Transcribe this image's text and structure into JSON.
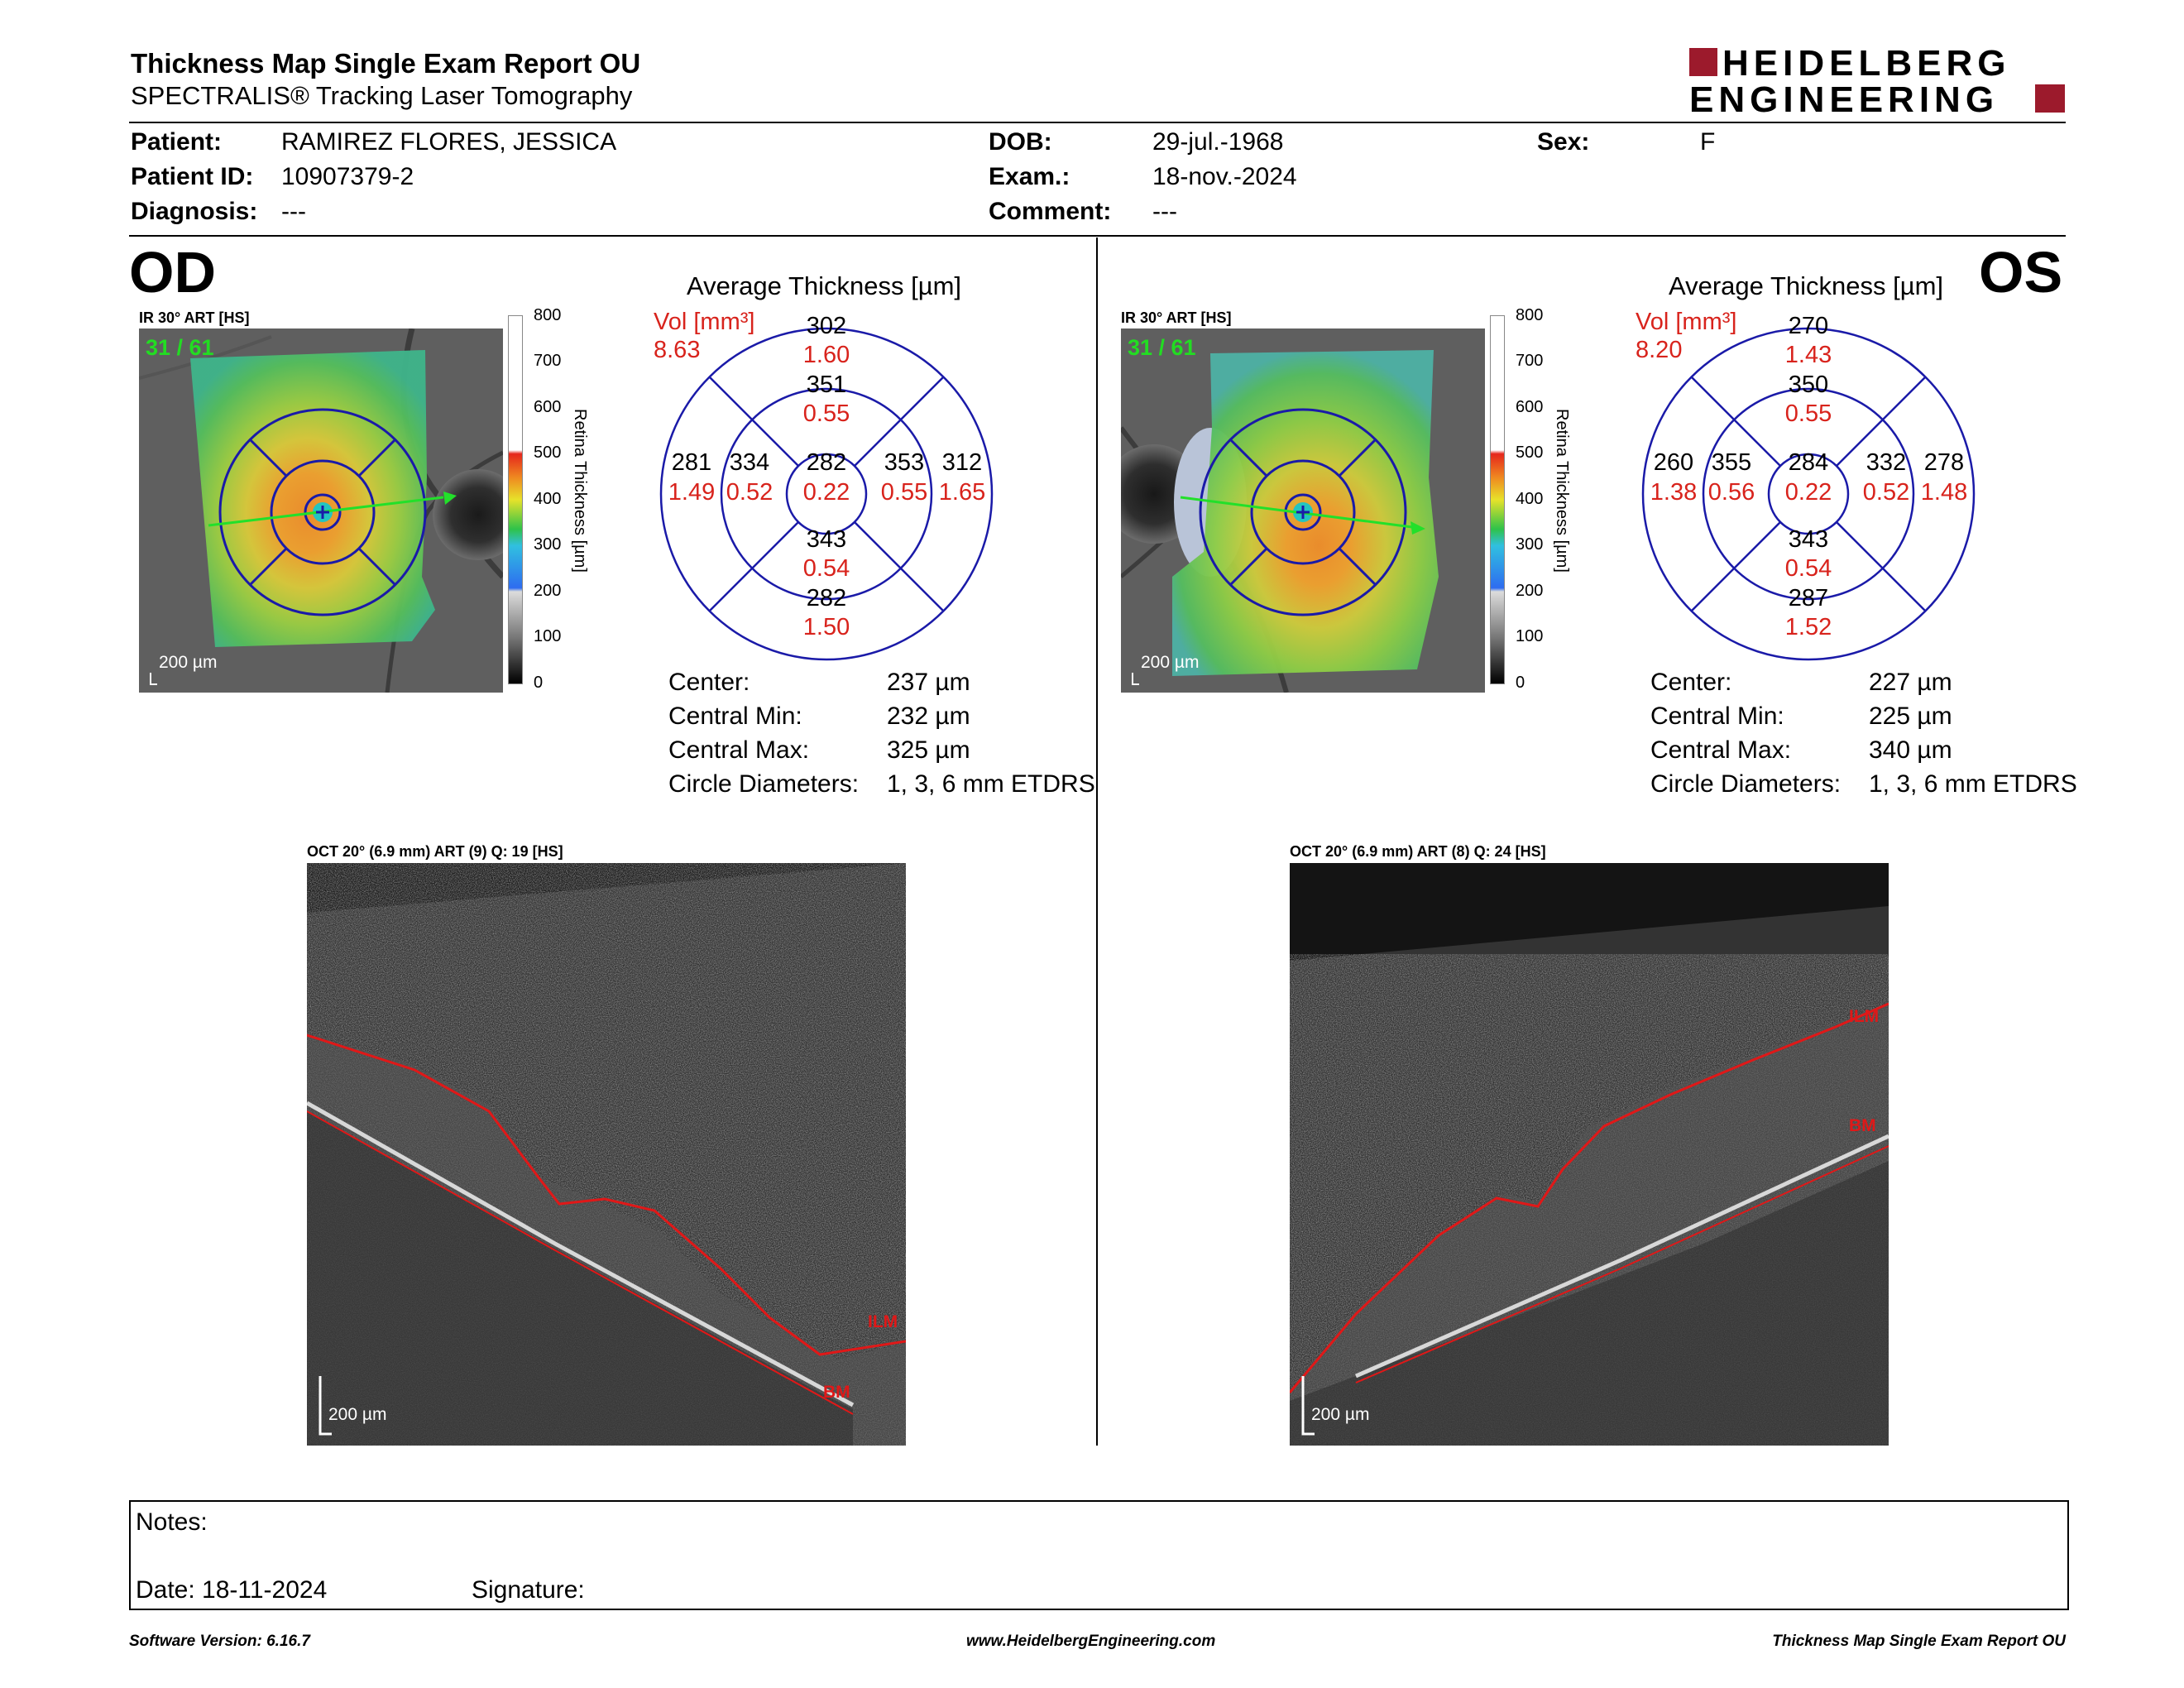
{
  "report": {
    "title": "Thickness Map Single Exam Report OU",
    "subtitle": "SPECTRALIS® Tracking Laser Tomography",
    "logo_line1": "HEIDELBERG",
    "logo_line2": "ENGINEERING"
  },
  "patient": {
    "patient_label": "Patient:",
    "patient_value": "RAMIREZ FLORES, JESSICA",
    "id_label": "Patient ID:",
    "id_value": "10907379-2",
    "diagnosis_label": "Diagnosis:",
    "diagnosis_value": "---",
    "dob_label": "DOB:",
    "dob_value": "29-jul.-1968",
    "exam_label": "Exam.:",
    "exam_value": "18-nov.-2024",
    "comment_label": "Comment:",
    "comment_value": "---",
    "sex_label": "Sex:",
    "sex_value": "F"
  },
  "od": {
    "eye": "OD",
    "ir_label": "IR 30° ART [HS]",
    "counter": "31 / 61",
    "scale": "200 µm",
    "colorbar_title": "Retina Thickness [µm]",
    "colorbar_ticks": [
      "800",
      "700",
      "600",
      "500",
      "400",
      "300",
      "200",
      "100",
      "0"
    ],
    "avg_title": "Average Thickness [µm]",
    "vol_label": "Vol [mm³]",
    "vol_value": "8.63",
    "grid": {
      "outer_sup": {
        "t": "302",
        "v": "1.60"
      },
      "inner_sup": {
        "t": "351",
        "v": "0.55"
      },
      "outer_nasal_left": {
        "t": "281",
        "v": "1.49"
      },
      "inner_left": {
        "t": "334",
        "v": "0.52"
      },
      "center": {
        "t": "282",
        "v": "0.22"
      },
      "inner_right": {
        "t": "353",
        "v": "0.55"
      },
      "outer_right": {
        "t": "312",
        "v": "1.65"
      },
      "inner_inf": {
        "t": "343",
        "v": "0.54"
      },
      "outer_inf": {
        "t": "282",
        "v": "1.50"
      }
    },
    "stats": [
      {
        "label": "Center:",
        "value": "237 µm"
      },
      {
        "label": "Central Min:",
        "value": "232 µm"
      },
      {
        "label": "Central Max:",
        "value": "325 µm"
      },
      {
        "label": "Circle Diameters:",
        "value": "1, 3, 6 mm ETDRS"
      }
    ],
    "oct_label": "OCT 20° (6.9 mm) ART (9) Q: 19 [HS]",
    "oct_scale": "200 µm",
    "ilm": "ILM",
    "bm": "BM"
  },
  "os": {
    "eye": "OS",
    "ir_label": "IR 30° ART [HS]",
    "counter": "31 / 61",
    "scale": "200 µm",
    "colorbar_title": "Retina Thickness [µm]",
    "colorbar_ticks": [
      "800",
      "700",
      "600",
      "500",
      "400",
      "300",
      "200",
      "100",
      "0"
    ],
    "avg_title": "Average Thickness [µm]",
    "vol_label": "Vol [mm³]",
    "vol_value": "8.20",
    "grid": {
      "outer_sup": {
        "t": "270",
        "v": "1.43"
      },
      "inner_sup": {
        "t": "350",
        "v": "0.55"
      },
      "outer_left": {
        "t": "260",
        "v": "1.38"
      },
      "inner_left": {
        "t": "355",
        "v": "0.56"
      },
      "center": {
        "t": "284",
        "v": "0.22"
      },
      "inner_right": {
        "t": "332",
        "v": "0.52"
      },
      "outer_right": {
        "t": "278",
        "v": "1.48"
      },
      "inner_inf": {
        "t": "343",
        "v": "0.54"
      },
      "outer_inf": {
        "t": "287",
        "v": "1.52"
      }
    },
    "stats": [
      {
        "label": "Center:",
        "value": "227 µm"
      },
      {
        "label": "Central Min:",
        "value": "225 µm"
      },
      {
        "label": "Central Max:",
        "value": "340 µm"
      },
      {
        "label": "Circle Diameters:",
        "value": "1, 3, 6 mm ETDRS"
      }
    ],
    "oct_label": "OCT 20° (6.9 mm) ART (8) Q: 24 [HS]",
    "oct_scale": "200 µm",
    "ilm": "ILM",
    "bm": "BM"
  },
  "notes": {
    "notes_label": "Notes:",
    "date_label": "Date: 18-11-2024",
    "signature_label": "Signature:"
  },
  "footer": {
    "software": "Software Version: 6.16.7",
    "website": "www.HeidelbergEngineering.com",
    "report_name": "Thickness Map Single Exam Report OU"
  },
  "colors": {
    "red": "#d8231c",
    "etdrs_blue": "#1a1aa8",
    "logo_red": "#9c1a2c"
  }
}
